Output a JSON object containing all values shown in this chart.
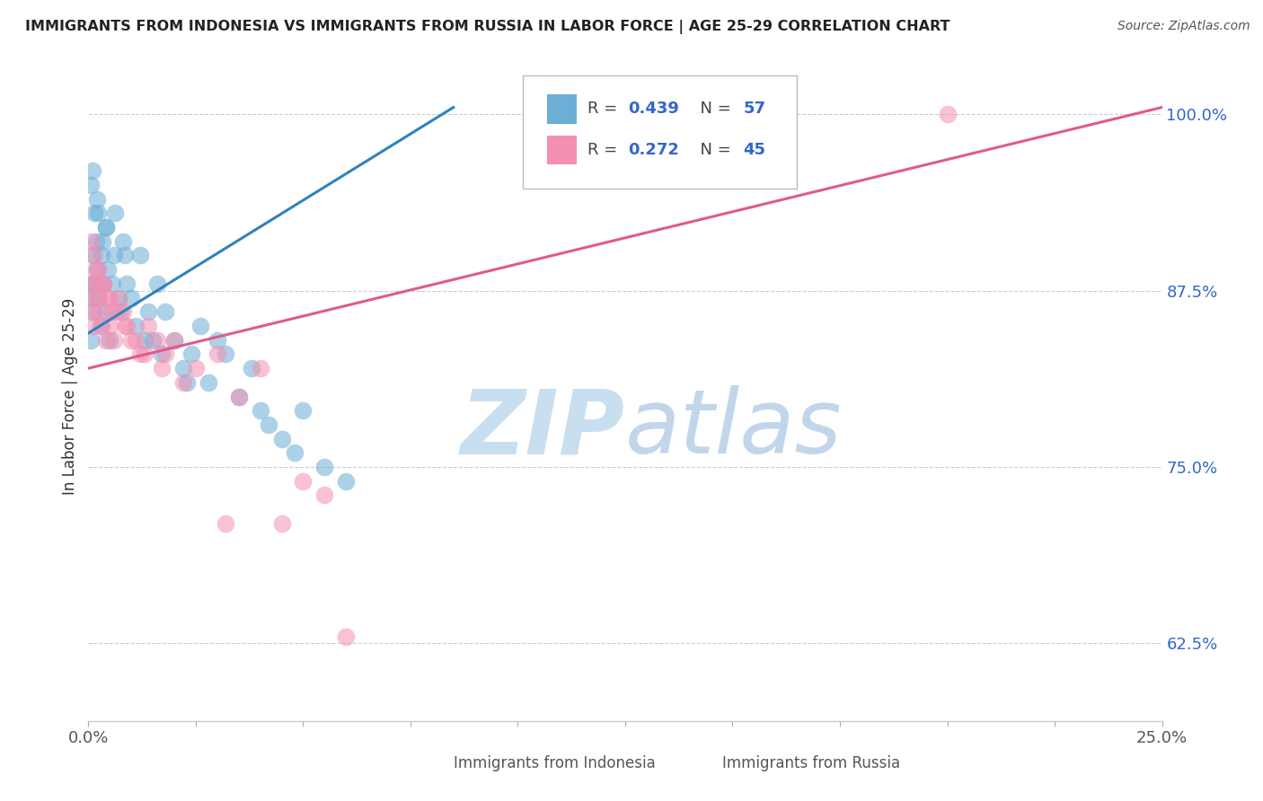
{
  "title": "IMMIGRANTS FROM INDONESIA VS IMMIGRANTS FROM RUSSIA IN LABOR FORCE | AGE 25-29 CORRELATION CHART",
  "source": "Source: ZipAtlas.com",
  "ylabel": "In Labor Force | Age 25-29",
  "xlim": [
    0.0,
    25.0
  ],
  "ylim": [
    57.0,
    103.0
  ],
  "yticks": [
    62.5,
    75.0,
    87.5,
    100.0
  ],
  "legend_labels": [
    "Immigrants from Indonesia",
    "Immigrants from Russia"
  ],
  "r_indonesia": 0.439,
  "n_indonesia": 57,
  "r_russia": 0.272,
  "n_russia": 45,
  "color_indonesia": "#6baed6",
  "color_russia": "#f48fb1",
  "color_indonesia_trend": "#3182bd",
  "color_russia_trend": "#e05a8a",
  "color_title": "#222222",
  "color_tick_y": "#3366cc",
  "color_tick_x": "#555555",
  "watermark_color": "#c8dff0",
  "indonesia_x": [
    0.05,
    0.05,
    0.08,
    0.1,
    0.12,
    0.15,
    0.18,
    0.2,
    0.22,
    0.25,
    0.28,
    0.3,
    0.35,
    0.38,
    0.4,
    0.45,
    0.5,
    0.55,
    0.6,
    0.7,
    0.75,
    0.8,
    0.9,
    1.0,
    1.1,
    1.2,
    1.4,
    1.5,
    1.6,
    1.8,
    2.0,
    2.2,
    2.4,
    2.6,
    2.8,
    3.0,
    3.2,
    3.5,
    3.8,
    4.0,
    4.2,
    4.5,
    4.8,
    5.0,
    5.5,
    6.0,
    0.06,
    0.09,
    0.14,
    0.19,
    0.32,
    0.42,
    0.62,
    0.85,
    1.3,
    1.7,
    2.3
  ],
  "indonesia_y": [
    88.0,
    84.0,
    87.0,
    90.0,
    86.0,
    88.0,
    91.0,
    89.0,
    93.0,
    87.0,
    85.0,
    90.0,
    88.0,
    86.0,
    92.0,
    89.0,
    84.0,
    88.0,
    90.0,
    87.0,
    86.0,
    91.0,
    88.0,
    87.0,
    85.0,
    90.0,
    86.0,
    84.0,
    88.0,
    86.0,
    84.0,
    82.0,
    83.0,
    85.0,
    81.0,
    84.0,
    83.0,
    80.0,
    82.0,
    79.0,
    78.0,
    77.0,
    76.0,
    79.0,
    75.0,
    74.0,
    95.0,
    96.0,
    93.0,
    94.0,
    91.0,
    92.0,
    93.0,
    90.0,
    84.0,
    83.0,
    81.0
  ],
  "russia_x": [
    0.05,
    0.08,
    0.1,
    0.12,
    0.15,
    0.18,
    0.2,
    0.25,
    0.3,
    0.35,
    0.4,
    0.45,
    0.5,
    0.55,
    0.6,
    0.7,
    0.8,
    0.9,
    1.0,
    1.2,
    1.4,
    1.6,
    1.8,
    2.0,
    2.5,
    3.0,
    3.5,
    4.0,
    5.0,
    6.0,
    0.07,
    0.14,
    0.22,
    0.32,
    0.48,
    0.65,
    0.85,
    1.1,
    1.3,
    1.7,
    2.2,
    3.2,
    4.5,
    5.5,
    20.0
  ],
  "russia_y": [
    88.0,
    87.0,
    86.0,
    85.0,
    89.0,
    88.0,
    87.0,
    86.0,
    85.0,
    88.0,
    84.0,
    87.0,
    85.0,
    86.0,
    84.0,
    87.0,
    86.0,
    85.0,
    84.0,
    83.0,
    85.0,
    84.0,
    83.0,
    84.0,
    82.0,
    83.0,
    80.0,
    82.0,
    74.0,
    63.0,
    91.0,
    90.0,
    89.0,
    88.0,
    87.0,
    86.0,
    85.0,
    84.0,
    83.0,
    82.0,
    81.0,
    71.0,
    71.0,
    73.0,
    100.0
  ],
  "indo_trend_x0": 0.0,
  "indo_trend_y0": 84.5,
  "indo_trend_x1": 8.5,
  "indo_trend_y1": 100.5,
  "rus_trend_x0": 0.0,
  "rus_trend_y0": 82.0,
  "rus_trend_x1": 25.0,
  "rus_trend_y1": 100.5
}
